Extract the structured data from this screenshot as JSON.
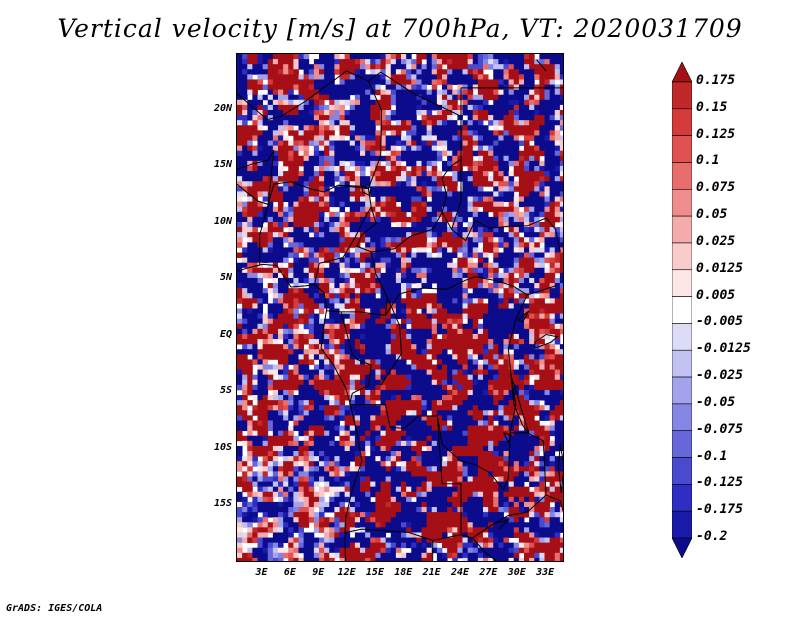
{
  "title": "Vertical velocity [m/s] at 700hPa, VT: 2020031709",
  "credit": "GrADS: IGES/COLA",
  "map": {
    "lat_labels": [
      "20N",
      "15N",
      "10N",
      "5N",
      "EQ",
      "5S",
      "10S",
      "15S"
    ],
    "lat_values": [
      20,
      15,
      10,
      5,
      0,
      -5,
      -10,
      -15
    ],
    "lon_labels": [
      "3E",
      "6E",
      "9E",
      "12E",
      "15E",
      "18E",
      "21E",
      "24E",
      "27E",
      "30E",
      "33E"
    ],
    "lon_values": [
      3,
      6,
      9,
      12,
      15,
      18,
      21,
      24,
      27,
      30,
      33
    ],
    "lon_range": [
      0.3,
      35.0
    ],
    "lat_range": [
      -20,
      25
    ],
    "noise_seed": 20200317
  },
  "colorbar": {
    "levels": [
      "0.175",
      "0.15",
      "0.125",
      "0.1",
      "0.075",
      "0.05",
      "0.025",
      "0.0125",
      "0.005",
      "-0.005",
      "-0.0125",
      "-0.025",
      "-0.05",
      "-0.075",
      "-0.1",
      "-0.125",
      "-0.175",
      "-0.2"
    ],
    "colors": [
      "#a50f15",
      "#c0282a",
      "#d63b3b",
      "#e05151",
      "#e86e6e",
      "#ef8c8c",
      "#f5abab",
      "#f9cccc",
      "#fce6e6",
      "#ffffff",
      "#dcdcf7",
      "#c2c2f2",
      "#a3a3ec",
      "#8585e3",
      "#6767da",
      "#4a4acf",
      "#2e2ec4",
      "#1a1aaa",
      "#0b0b8c"
    ]
  }
}
